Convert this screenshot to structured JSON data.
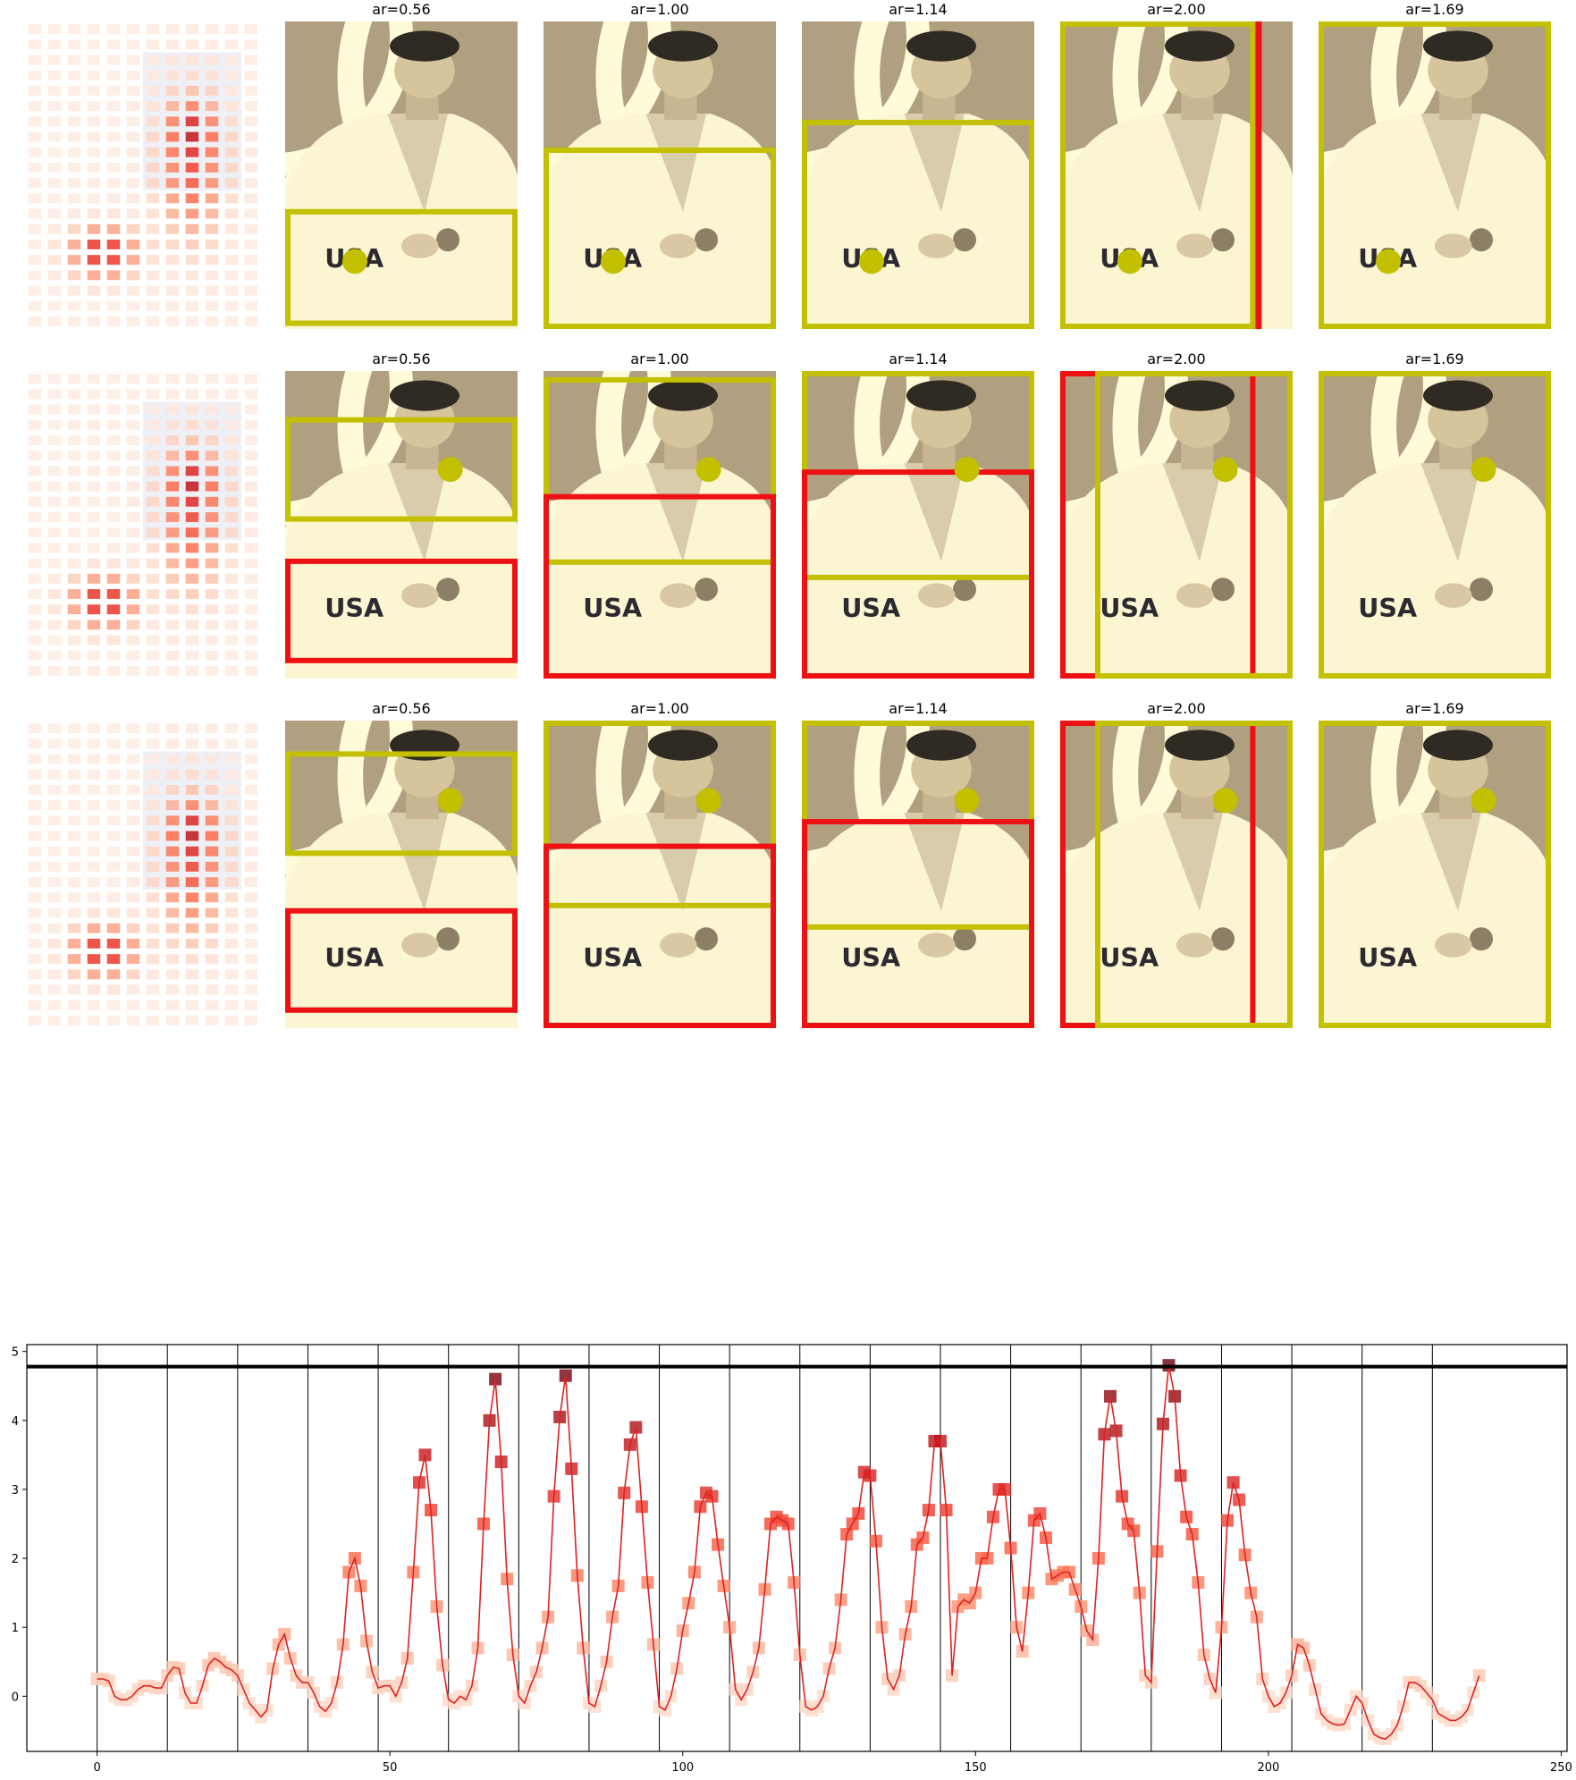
{
  "colors": {
    "crop_box": "#c2c000",
    "reject_box": "#ee1111",
    "line": "#dd2222",
    "photo_bg": "#b0a07f",
    "photo_light": "#fffbd8",
    "hline": "#000000"
  },
  "photo_text": "USA",
  "rows": [
    {
      "panels": [
        {
          "title": "ar=0.56"
        },
        {
          "title": "ar=1.00"
        },
        {
          "title": "ar=1.14"
        },
        {
          "title": "ar=2.00"
        },
        {
          "title": "ar=1.69"
        }
      ]
    },
    {
      "panels": [
        {
          "title": "ar=0.56"
        },
        {
          "title": "ar=1.00"
        },
        {
          "title": "ar=1.14"
        },
        {
          "title": "ar=2.00"
        },
        {
          "title": "ar=1.69"
        }
      ]
    },
    {
      "panels": [
        {
          "title": "ar=0.56"
        },
        {
          "title": "ar=1.00"
        },
        {
          "title": "ar=1.14"
        },
        {
          "title": "ar=2.00"
        },
        {
          "title": "ar=1.69"
        }
      ]
    }
  ],
  "chart_data": {
    "type": "line",
    "title": "",
    "xlabel": "",
    "ylabel": "",
    "xlim": [
      -12,
      251
    ],
    "ylim": [
      -0.8,
      5.1
    ],
    "xticks": [
      0,
      50,
      100,
      150,
      200,
      250
    ],
    "yticks": [
      0,
      1,
      2,
      3,
      4,
      5
    ],
    "hline": 4.78,
    "vlines": [
      0,
      12,
      24,
      36,
      48,
      60,
      72,
      84,
      96,
      108,
      120,
      132,
      144,
      156,
      168,
      180,
      192,
      204,
      216,
      228
    ],
    "x_start": 0,
    "x_step": 1,
    "values": [
      0.25,
      0.25,
      0.22,
      0.0,
      -0.05,
      -0.05,
      0.0,
      0.1,
      0.15,
      0.15,
      0.12,
      0.12,
      0.3,
      0.42,
      0.4,
      0.05,
      -0.1,
      -0.1,
      0.15,
      0.45,
      0.55,
      0.5,
      0.42,
      0.38,
      0.3,
      0.1,
      -0.1,
      -0.2,
      -0.3,
      -0.2,
      0.4,
      0.75,
      0.9,
      0.55,
      0.3,
      0.2,
      0.2,
      0.05,
      -0.15,
      -0.22,
      -0.1,
      0.2,
      0.75,
      1.8,
      2.0,
      1.6,
      0.8,
      0.35,
      0.12,
      0.15,
      0.15,
      0.0,
      0.2,
      0.55,
      1.8,
      3.1,
      3.5,
      2.7,
      1.3,
      0.45,
      -0.05,
      -0.1,
      0.0,
      -0.05,
      0.15,
      0.7,
      2.5,
      4.0,
      4.6,
      3.4,
      1.7,
      0.6,
      0.0,
      -0.1,
      0.15,
      0.35,
      0.7,
      1.15,
      2.9,
      4.05,
      4.65,
      3.3,
      1.75,
      0.7,
      -0.1,
      -0.15,
      0.15,
      0.5,
      1.15,
      1.6,
      2.95,
      3.65,
      3.9,
      2.75,
      1.65,
      0.75,
      -0.15,
      -0.2,
      0.0,
      0.4,
      0.95,
      1.35,
      1.8,
      2.75,
      2.95,
      2.9,
      2.2,
      1.6,
      1.0,
      0.1,
      -0.05,
      0.1,
      0.35,
      0.7,
      1.55,
      2.5,
      2.6,
      2.55,
      2.5,
      1.65,
      0.6,
      -0.15,
      -0.2,
      -0.15,
      0.0,
      0.4,
      0.7,
      1.4,
      2.35,
      2.5,
      2.65,
      3.25,
      3.2,
      2.25,
      1.0,
      0.25,
      0.1,
      0.3,
      0.9,
      1.3,
      2.2,
      2.3,
      2.7,
      3.7,
      3.7,
      2.7,
      0.3,
      1.3,
      1.4,
      1.35,
      1.5,
      2.0,
      2.0,
      2.6,
      3.0,
      3.0,
      2.15,
      1.0,
      0.65,
      1.5,
      2.55,
      2.65,
      2.3,
      1.7,
      1.75,
      1.8,
      1.8,
      1.55,
      1.3,
      0.95,
      0.82,
      2.0,
      3.8,
      4.35,
      3.85,
      2.9,
      2.5,
      2.4,
      1.5,
      0.3,
      0.2,
      2.1,
      3.95,
      4.8,
      4.35,
      3.2,
      2.6,
      2.35,
      1.65,
      0.6,
      0.25,
      0.05,
      1.0,
      2.55,
      3.1,
      2.85,
      2.05,
      1.5,
      1.15,
      0.25,
      0.0,
      -0.15,
      -0.1,
      0.05,
      0.3,
      0.75,
      0.7,
      0.45,
      0.1,
      -0.25,
      -0.35,
      -0.4,
      -0.42,
      -0.4,
      -0.2,
      0.0,
      -0.1,
      -0.35,
      -0.55,
      -0.6,
      -0.62,
      -0.55,
      -0.42,
      -0.15,
      0.2,
      0.2,
      0.15,
      0.05,
      -0.05,
      -0.25,
      -0.3,
      -0.35,
      -0.35,
      -0.3,
      -0.2,
      0.05,
      0.3
    ]
  }
}
